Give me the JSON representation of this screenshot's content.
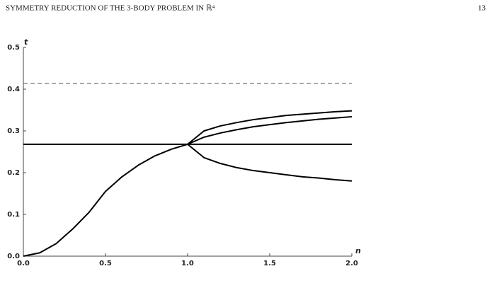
{
  "header": {
    "title": "SYMMETRY REDUCTION OF THE 3-BODY PROBLEM IN ℝ⁴",
    "page": "13"
  },
  "chart_data": {
    "type": "line",
    "x_label": "n",
    "y_label": "t",
    "x": [
      0,
      0.1,
      0.2,
      0.3,
      0.4,
      0.5,
      0.6,
      0.7,
      0.8,
      0.9,
      1.0,
      1.1,
      1.2,
      1.3,
      1.4,
      1.5,
      1.6,
      1.7,
      1.8,
      1.9,
      2.0
    ],
    "series": [
      {
        "color": "#555555",
        "dashed": true,
        "values": [
          0.414,
          0.414,
          0.414,
          0.414,
          0.414,
          0.414,
          0.414,
          0.414,
          0.414,
          0.414,
          0.414,
          0.414,
          0.414,
          0.414,
          0.414,
          0.414,
          0.414,
          0.414,
          0.414,
          0.414,
          0.414
        ]
      },
      {
        "color": "#000000",
        "dashed": false,
        "values": [
          0.268,
          0.268,
          0.268,
          0.268,
          0.268,
          0.268,
          0.268,
          0.268,
          0.268,
          0.268,
          0.268,
          0.268,
          0.268,
          0.268,
          0.268,
          0.268,
          0.268,
          0.268,
          0.268,
          0.268,
          0.268
        ]
      },
      {
        "color": "#000000",
        "dashed": false,
        "values": [
          0,
          0.008,
          0.03,
          0.065,
          0.105,
          0.155,
          0.19,
          0.218,
          0.24,
          0.256,
          0.268,
          0.285,
          0.295,
          0.303,
          0.31,
          0.315,
          0.32,
          0.324,
          0.328,
          0.331,
          0.334
        ]
      },
      {
        "color": "#000000",
        "dashed": false,
        "values": [
          null,
          null,
          null,
          null,
          null,
          null,
          null,
          null,
          null,
          null,
          0.268,
          0.3,
          0.312,
          0.32,
          0.327,
          0.332,
          0.337,
          0.34,
          0.343,
          0.346,
          0.348
        ]
      },
      {
        "color": "#000000",
        "dashed": false,
        "values": [
          null,
          null,
          null,
          null,
          null,
          null,
          null,
          null,
          null,
          null,
          0.268,
          0.236,
          0.222,
          0.212,
          0.205,
          0.2,
          0.195,
          0.19,
          0.187,
          0.183,
          0.18
        ]
      }
    ],
    "xlim": [
      0,
      2
    ],
    "ylim": [
      0,
      0.5
    ],
    "xticks": [
      {
        "value": 0,
        "label": "0.0"
      },
      0.5,
      {
        "value": 1,
        "label": "1.0"
      },
      1.5,
      {
        "value": 2,
        "label": "2.0"
      }
    ],
    "yticks": [
      {
        "value": 0,
        "label": "0.0"
      },
      0.1,
      0.2,
      0.3,
      0.4,
      0.5
    ]
  }
}
